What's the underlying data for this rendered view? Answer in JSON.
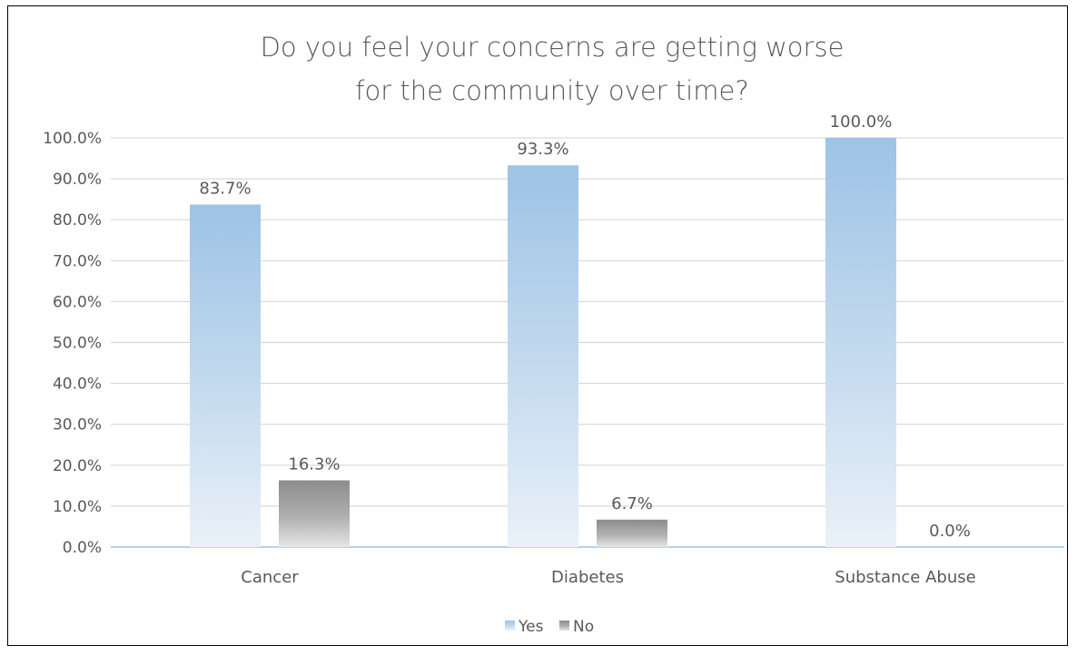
{
  "chart_data": {
    "type": "bar",
    "title": "Do you feel your concerns are getting worse for the community over time?",
    "title_lines": [
      "Do you feel your concerns are getting worse",
      "for the community over time?"
    ],
    "categories": [
      "Cancer",
      "Diabetes",
      "Substance Abuse"
    ],
    "series": [
      {
        "name": "Yes",
        "values": [
          83.7,
          93.3,
          100.0
        ],
        "labels": [
          "83.7%",
          "93.3%",
          "100.0%"
        ],
        "color_top": "#9dc3e6",
        "color_bottom": "#eaf1f9"
      },
      {
        "name": "No",
        "values": [
          16.3,
          6.7,
          0.0
        ],
        "labels": [
          "16.3%",
          "6.7%",
          "0.0%"
        ],
        "color_top": "#8c8c8c",
        "color_bottom": "#e6e6e6"
      }
    ],
    "ylim": [
      0,
      100
    ],
    "y_ticks": [
      "0.0%",
      "10.0%",
      "20.0%",
      "30.0%",
      "40.0%",
      "50.0%",
      "60.0%",
      "70.0%",
      "80.0%",
      "90.0%",
      "100.0%"
    ],
    "grid": true,
    "legend": "bottom",
    "gridline_color": "#d9d9d9",
    "axis_color": "#9dc3e6"
  }
}
